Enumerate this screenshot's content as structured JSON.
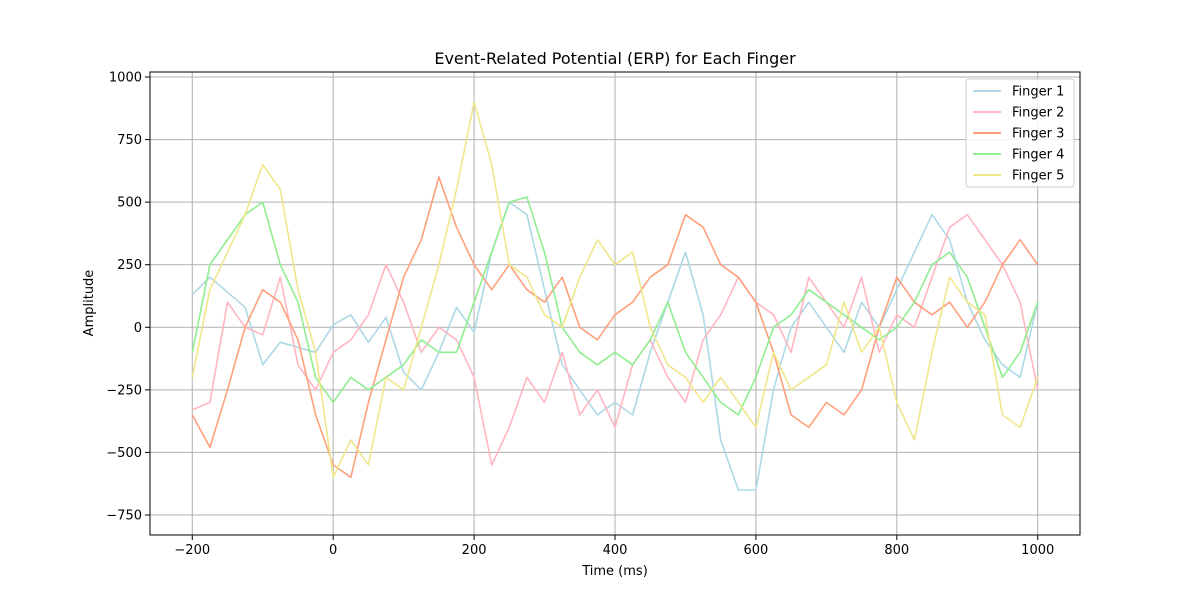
{
  "chart_data": {
    "type": "line",
    "title": "Event-Related Potential (ERP) for Each Finger",
    "xlabel": "Time (ms)",
    "ylabel": "Amplitude",
    "xlim": [
      -260,
      1060
    ],
    "ylim": [
      -830,
      1020
    ],
    "xticks": [
      -200,
      0,
      200,
      400,
      600,
      800,
      1000
    ],
    "xtick_labels": [
      "−200",
      "0",
      "200",
      "400",
      "600",
      "800",
      "1000"
    ],
    "yticks": [
      -750,
      -500,
      -250,
      0,
      250,
      500,
      750,
      1000
    ],
    "ytick_labels": [
      "−750",
      "−500",
      "−250",
      "0",
      "250",
      "500",
      "750",
      "1000"
    ],
    "grid": true,
    "legend_position": "top-right",
    "series": [
      {
        "name": "Finger 1",
        "color": "#add8e6",
        "x": [
          -200,
          -175,
          -150,
          -125,
          -100,
          -75,
          -50,
          -25,
          0,
          25,
          50,
          75,
          100,
          125,
          150,
          175,
          200,
          225,
          250,
          275,
          300,
          325,
          350,
          375,
          400,
          425,
          450,
          475,
          500,
          525,
          550,
          575,
          600,
          625,
          650,
          675,
          700,
          725,
          750,
          775,
          800,
          825,
          850,
          875,
          900,
          925,
          950,
          975,
          1000
        ],
        "values": [
          130,
          200,
          140,
          80,
          -150,
          -60,
          -80,
          -100,
          10,
          50,
          -60,
          40,
          -180,
          -250,
          -100,
          80,
          -20,
          300,
          500,
          450,
          150,
          -150,
          -250,
          -350,
          -300,
          -350,
          -100,
          100,
          300,
          50,
          -450,
          -650,
          -650,
          -250,
          0,
          100,
          0,
          -100,
          100,
          0,
          150,
          300,
          450,
          350,
          100,
          -50,
          -150,
          -200,
          100
        ]
      },
      {
        "name": "Finger 2",
        "color": "#ffb6c1",
        "x": [
          -200,
          -175,
          -150,
          -125,
          -100,
          -75,
          -50,
          -25,
          0,
          25,
          50,
          75,
          100,
          125,
          150,
          175,
          200,
          225,
          250,
          275,
          300,
          325,
          350,
          375,
          400,
          425,
          450,
          475,
          500,
          525,
          550,
          575,
          600,
          625,
          650,
          675,
          700,
          725,
          750,
          775,
          800,
          825,
          850,
          875,
          900,
          925,
          950,
          975,
          1000
        ],
        "values": [
          -330,
          -300,
          100,
          0,
          -30,
          200,
          -150,
          -250,
          -100,
          -50,
          50,
          250,
          100,
          -100,
          0,
          -50,
          -200,
          -550,
          -400,
          -200,
          -300,
          -100,
          -350,
          -250,
          -400,
          -150,
          -50,
          -200,
          -300,
          -50,
          50,
          200,
          100,
          50,
          -100,
          200,
          100,
          0,
          200,
          -100,
          50,
          0,
          200,
          400,
          450,
          350,
          250,
          100,
          -250
        ]
      },
      {
        "name": "Finger 3",
        "color": "#ffa07a",
        "x": [
          -200,
          -175,
          -150,
          -125,
          -100,
          -75,
          -50,
          -25,
          0,
          25,
          50,
          75,
          100,
          125,
          150,
          175,
          200,
          225,
          250,
          275,
          300,
          325,
          350,
          375,
          400,
          425,
          450,
          475,
          500,
          525,
          550,
          575,
          600,
          625,
          650,
          675,
          700,
          725,
          750,
          775,
          800,
          825,
          850,
          875,
          900,
          925,
          950,
          975,
          1000
        ],
        "values": [
          -350,
          -480,
          -250,
          0,
          150,
          100,
          -50,
          -350,
          -550,
          -600,
          -300,
          -50,
          200,
          350,
          600,
          400,
          250,
          150,
          250,
          150,
          100,
          200,
          0,
          -50,
          50,
          100,
          200,
          250,
          450,
          400,
          250,
          200,
          100,
          -100,
          -350,
          -400,
          -300,
          -350,
          -250,
          0,
          200,
          100,
          50,
          100,
          0,
          100,
          250,
          350,
          250
        ]
      },
      {
        "name": "Finger 4",
        "color": "#90ee90",
        "x": [
          -200,
          -175,
          -150,
          -125,
          -100,
          -75,
          -50,
          -25,
          0,
          25,
          50,
          75,
          100,
          125,
          150,
          175,
          200,
          225,
          250,
          275,
          300,
          325,
          350,
          375,
          400,
          425,
          450,
          475,
          500,
          525,
          550,
          575,
          600,
          625,
          650,
          675,
          700,
          725,
          750,
          775,
          800,
          825,
          850,
          875,
          900,
          925,
          950,
          975,
          1000
        ],
        "values": [
          -100,
          250,
          350,
          450,
          500,
          250,
          100,
          -200,
          -300,
          -200,
          -250,
          -200,
          -150,
          -50,
          -100,
          -100,
          100,
          300,
          500,
          520,
          300,
          0,
          -100,
          -150,
          -100,
          -150,
          -50,
          100,
          -100,
          -200,
          -300,
          -350,
          -200,
          0,
          50,
          150,
          100,
          50,
          0,
          -50,
          0,
          100,
          250,
          300,
          200,
          0,
          -200,
          -100,
          100
        ]
      },
      {
        "name": "Finger 5",
        "color": "#f0e68c",
        "x": [
          -200,
          -175,
          -150,
          -125,
          -100,
          -75,
          -50,
          -25,
          0,
          25,
          50,
          75,
          100,
          125,
          150,
          175,
          200,
          225,
          250,
          275,
          300,
          325,
          350,
          375,
          400,
          425,
          450,
          475,
          500,
          525,
          550,
          575,
          600,
          625,
          650,
          675,
          700,
          725,
          750,
          775,
          800,
          825,
          850,
          875,
          900,
          925,
          950,
          975,
          1000
        ],
        "values": [
          -200,
          150,
          300,
          450,
          650,
          550,
          150,
          -100,
          -600,
          -450,
          -550,
          -200,
          -250,
          0,
          250,
          550,
          900,
          650,
          250,
          200,
          50,
          0,
          200,
          350,
          250,
          300,
          0,
          -150,
          -200,
          -300,
          -200,
          -300,
          -400,
          -100,
          -250,
          -200,
          -150,
          100,
          -100,
          0,
          -300,
          -450,
          -100,
          200,
          100,
          50,
          -350,
          -400,
          -200
        ]
      }
    ]
  }
}
